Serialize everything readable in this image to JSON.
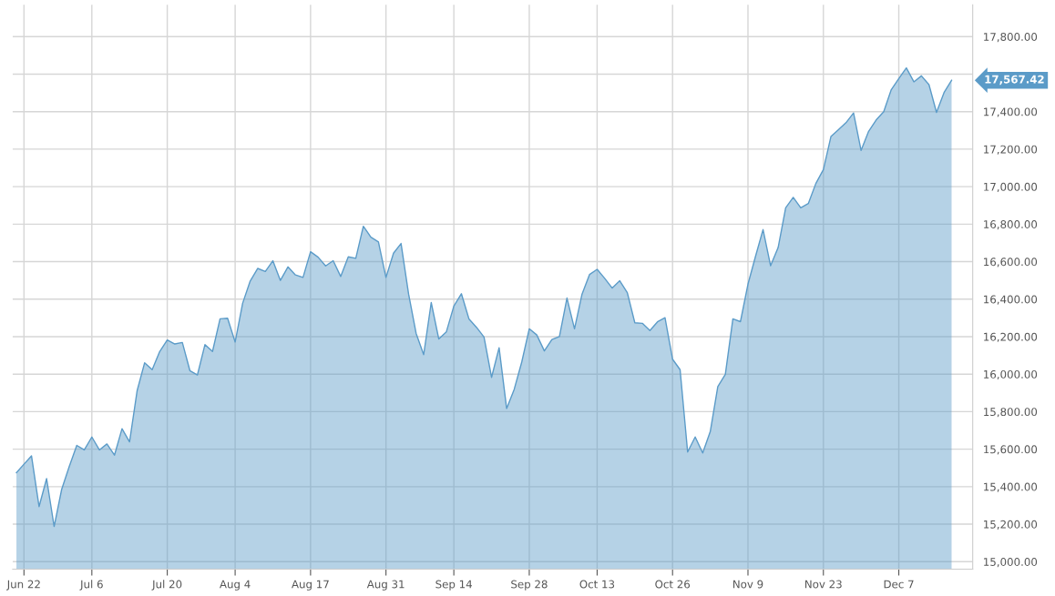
{
  "chart_data": {
    "type": "area",
    "categories": [
      null,
      "Jun 22",
      null,
      null,
      null,
      null,
      null,
      null,
      null,
      null,
      "Jul 6",
      null,
      null,
      null,
      null,
      null,
      null,
      null,
      null,
      null,
      "Jul 20",
      null,
      null,
      null,
      null,
      null,
      null,
      null,
      null,
      "Aug 4",
      null,
      null,
      null,
      null,
      null,
      null,
      null,
      null,
      null,
      "Aug 17",
      null,
      null,
      null,
      null,
      null,
      null,
      null,
      null,
      null,
      "Aug 31",
      null,
      null,
      null,
      null,
      null,
      null,
      null,
      null,
      "Sep 14",
      null,
      null,
      null,
      null,
      null,
      null,
      null,
      null,
      null,
      "Sep 28",
      null,
      null,
      null,
      null,
      null,
      null,
      null,
      null,
      "Oct 13",
      null,
      null,
      null,
      null,
      null,
      null,
      null,
      null,
      null,
      "Oct 26",
      null,
      null,
      null,
      null,
      null,
      null,
      null,
      null,
      null,
      "Nov 9",
      null,
      null,
      null,
      null,
      null,
      null,
      null,
      null,
      null,
      "Nov 23",
      null,
      null,
      null,
      null,
      null,
      null,
      null,
      null,
      null,
      "Dec 7",
      null,
      null,
      null,
      null,
      null,
      null,
      null
    ],
    "series": [
      {
        "color": "#5b9bc8",
        "values": [
          15475,
          15520,
          15564,
          15294,
          15443,
          15188,
          15386,
          15507,
          15620,
          15596,
          15665,
          15596,
          15628,
          15568,
          15709,
          15639,
          15911,
          16061,
          16024,
          16121,
          16182,
          16161,
          16169,
          16019,
          15996,
          16158,
          16121,
          16295,
          16298,
          16172,
          16379,
          16497,
          16564,
          16548,
          16605,
          16500,
          16572,
          16529,
          16516,
          16653,
          16624,
          16577,
          16605,
          16521,
          16626,
          16618,
          16789,
          16731,
          16705,
          16516,
          16645,
          16697,
          16427,
          16217,
          16104,
          16382,
          16188,
          16225,
          16363,
          16429,
          16295,
          16250,
          16198,
          15983,
          16141,
          15817,
          15919,
          16064,
          16242,
          16209,
          16124,
          16185,
          16201,
          16406,
          16242,
          16427,
          16532,
          16559,
          16511,
          16459,
          16498,
          16435,
          16274,
          16271,
          16233,
          16279,
          16301,
          16080,
          16024,
          15585,
          15665,
          15580,
          15694,
          15934,
          15999,
          16295,
          16280,
          16480,
          16628,
          16771,
          16578,
          16675,
          16887,
          16943,
          16887,
          16910,
          17017,
          17091,
          17267,
          17304,
          17341,
          17393,
          17193,
          17295,
          17356,
          17400,
          17517,
          17576,
          17633,
          17559,
          17591,
          17544,
          17396,
          17502,
          17567.42
        ]
      }
    ],
    "ylim": [
      14960,
      17970
    ],
    "yticks": [
      {
        "value": 15000,
        "label": "15,000.00"
      },
      {
        "value": 15200,
        "label": "15,200.00"
      },
      {
        "value": 15400,
        "label": "15,400.00"
      },
      {
        "value": 15600,
        "label": "15,600.00"
      },
      {
        "value": 15800,
        "label": "15,800.00"
      },
      {
        "value": 16000,
        "label": "16,000.00"
      },
      {
        "value": 16200,
        "label": "16,200.00"
      },
      {
        "value": 16400,
        "label": "16,400.00"
      },
      {
        "value": 16600,
        "label": "16,600.00"
      },
      {
        "value": 16800,
        "label": "16,800.00"
      },
      {
        "value": 17000,
        "label": "17,000.00"
      },
      {
        "value": 17200,
        "label": "17,200.00"
      },
      {
        "value": 17400,
        "label": "17,400.00"
      },
      {
        "value": 17600,
        "label": null
      },
      {
        "value": 17800,
        "label": "17,800.00"
      }
    ],
    "annotations": [
      "17,567.42"
    ],
    "grid": true
  }
}
